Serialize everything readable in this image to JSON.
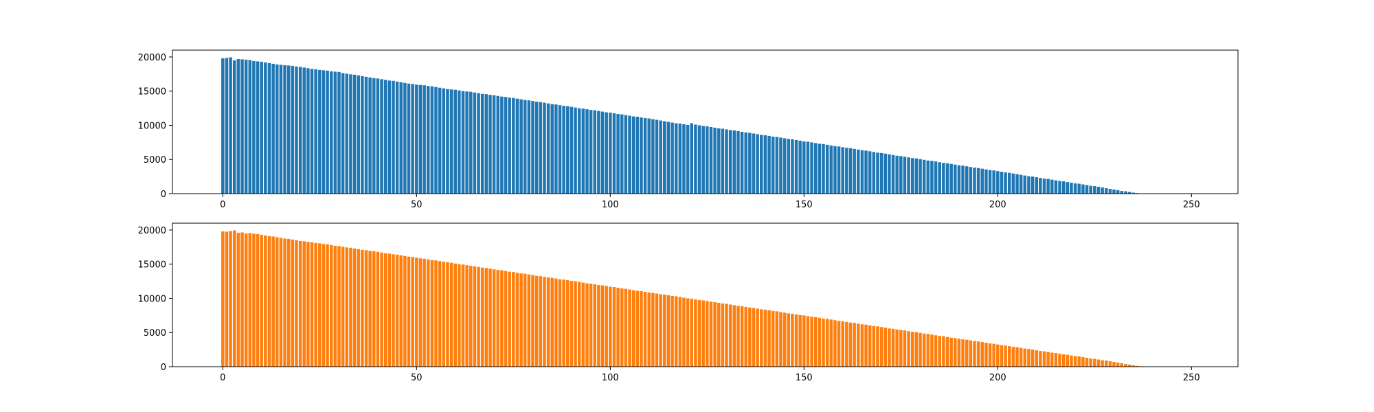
{
  "chart_data": [
    {
      "type": "bar",
      "color": "#1f77b4",
      "x": {
        "start": 0,
        "count": 250,
        "step": 1
      },
      "xlim": [
        -13,
        262
      ],
      "ylim": [
        0,
        21000
      ],
      "xticks": [
        0,
        50,
        100,
        150,
        200,
        250
      ],
      "yticks": [
        0,
        5000,
        10000,
        15000,
        20000
      ],
      "grid": false,
      "values": [
        19800,
        19850,
        19950,
        19500,
        19700,
        19650,
        19600,
        19550,
        19400,
        19350,
        19300,
        19200,
        19100,
        19000,
        18900,
        18850,
        18800,
        18750,
        18700,
        18600,
        18550,
        18450,
        18350,
        18250,
        18200,
        18100,
        18050,
        18000,
        17900,
        17850,
        17800,
        17650,
        17550,
        17450,
        17400,
        17300,
        17200,
        17100,
        17000,
        16900,
        16850,
        16750,
        16650,
        16550,
        16500,
        16400,
        16300,
        16200,
        16100,
        16050,
        15950,
        15900,
        15850,
        15750,
        15700,
        15600,
        15500,
        15400,
        15300,
        15250,
        15200,
        15100,
        15000,
        14950,
        14900,
        14800,
        14700,
        14600,
        14550,
        14450,
        14400,
        14300,
        14200,
        14150,
        14050,
        14000,
        13900,
        13800,
        13700,
        13650,
        13550,
        13450,
        13400,
        13300,
        13200,
        13100,
        13050,
        12950,
        12850,
        12800,
        12700,
        12600,
        12500,
        12450,
        12350,
        12250,
        12200,
        12100,
        12000,
        11900,
        11850,
        11750,
        11650,
        11600,
        11500,
        11400,
        11300,
        11250,
        11150,
        11050,
        11000,
        10900,
        10800,
        10700,
        10600,
        10500,
        10400,
        10300,
        10250,
        10150,
        10050,
        10300,
        10100,
        10000,
        9900,
        9850,
        9750,
        9650,
        9550,
        9500,
        9400,
        9300,
        9250,
        9150,
        9050,
        8950,
        8900,
        8800,
        8700,
        8600,
        8550,
        8450,
        8350,
        8300,
        8200,
        8100,
        8000,
        7950,
        7850,
        7750,
        7650,
        7600,
        7500,
        7400,
        7300,
        7250,
        7150,
        7050,
        6950,
        6900,
        6800,
        6700,
        6650,
        6550,
        6450,
        6350,
        6300,
        6200,
        6100,
        6000,
        5950,
        5850,
        5750,
        5650,
        5550,
        5500,
        5400,
        5300,
        5200,
        5150,
        5050,
        4950,
        4850,
        4800,
        4700,
        4600,
        4500,
        4450,
        4350,
        4250,
        4150,
        4100,
        4000,
        3900,
        3800,
        3750,
        3650,
        3550,
        3450,
        3400,
        3300,
        3200,
        3100,
        3050,
        2950,
        2850,
        2750,
        2650,
        2550,
        2500,
        2400,
        2300,
        2200,
        2150,
        2050,
        1950,
        1850,
        1800,
        1700,
        1600,
        1500,
        1450,
        1350,
        1250,
        1150,
        1100,
        1000,
        900,
        800,
        700,
        600,
        500,
        400,
        350,
        250,
        150,
        80,
        30
      ]
    },
    {
      "type": "bar",
      "color": "#ff7f0e",
      "x": {
        "start": 0,
        "count": 250,
        "step": 1
      },
      "xlim": [
        -13,
        262
      ],
      "ylim": [
        0,
        21000
      ],
      "xticks": [
        0,
        50,
        100,
        150,
        200,
        250
      ],
      "yticks": [
        0,
        5000,
        10000,
        15000,
        20000
      ],
      "grid": false,
      "values": [
        19800,
        19750,
        19850,
        19950,
        19600,
        19650,
        19500,
        19550,
        19450,
        19400,
        19300,
        19200,
        19100,
        19050,
        18950,
        18850,
        18750,
        18700,
        18600,
        18500,
        18400,
        18350,
        18250,
        18200,
        18100,
        18050,
        17950,
        17900,
        17800,
        17700,
        17650,
        17550,
        17450,
        17400,
        17300,
        17200,
        17100,
        17050,
        16950,
        16900,
        16800,
        16700,
        16600,
        16550,
        16450,
        16400,
        16300,
        16200,
        16100,
        16050,
        15950,
        15850,
        15800,
        15700,
        15600,
        15550,
        15450,
        15350,
        15300,
        15200,
        15100,
        15000,
        14950,
        14850,
        14750,
        14700,
        14600,
        14500,
        14450,
        14350,
        14250,
        14150,
        14100,
        14000,
        13900,
        13850,
        13750,
        13650,
        13600,
        13500,
        13400,
        13300,
        13250,
        13150,
        13050,
        13000,
        12900,
        12800,
        12750,
        12650,
        12550,
        12500,
        12400,
        12300,
        12200,
        12150,
        12050,
        11950,
        11900,
        11800,
        11700,
        11650,
        11550,
        11450,
        11400,
        11300,
        11200,
        11100,
        11050,
        10950,
        10850,
        10800,
        10700,
        10600,
        10550,
        10450,
        10350,
        10300,
        10200,
        10100,
        10000,
        9950,
        9850,
        9750,
        9700,
        9600,
        9500,
        9450,
        9350,
        9250,
        9200,
        9100,
        9000,
        8900,
        8850,
        8750,
        8650,
        8600,
        8500,
        8400,
        8350,
        8250,
        8150,
        8100,
        8000,
        7900,
        7800,
        7750,
        7650,
        7550,
        7500,
        7400,
        7300,
        7250,
        7150,
        7050,
        7000,
        6900,
        6800,
        6700,
        6650,
        6550,
        6450,
        6400,
        6300,
        6200,
        6150,
        6050,
        5950,
        5900,
        5800,
        5700,
        5600,
        5550,
        5450,
        5350,
        5300,
        5200,
        5100,
        5050,
        4950,
        4850,
        4800,
        4700,
        4600,
        4500,
        4450,
        4350,
        4250,
        4200,
        4100,
        4000,
        3950,
        3850,
        3750,
        3700,
        3600,
        3500,
        3400,
        3350,
        3250,
        3150,
        3100,
        3000,
        2900,
        2850,
        2750,
        2650,
        2600,
        2500,
        2400,
        2300,
        2250,
        2150,
        2050,
        2000,
        1900,
        1800,
        1750,
        1650,
        1550,
        1500,
        1400,
        1300,
        1200,
        1150,
        1050,
        950,
        900,
        800,
        700,
        600,
        500,
        400,
        300,
        200,
        120,
        60,
        20
      ]
    }
  ]
}
